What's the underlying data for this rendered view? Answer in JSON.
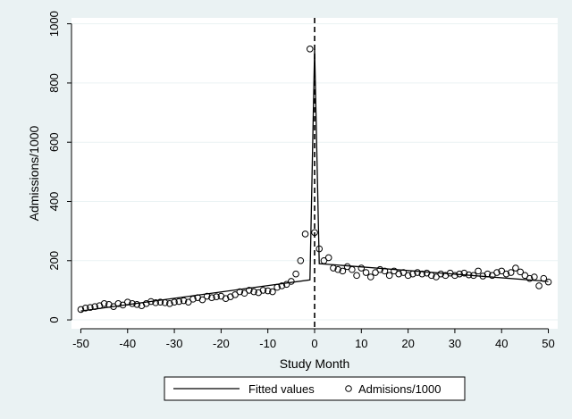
{
  "chart_data": {
    "type": "scatter",
    "title": "",
    "xlabel": "Study Month",
    "ylabel": "Admissions/1000",
    "xlim": [
      -52,
      52
    ],
    "ylim": [
      -30,
      1020
    ],
    "xticks": [
      -50,
      -40,
      -30,
      -20,
      -10,
      0,
      10,
      20,
      30,
      40,
      50
    ],
    "yticks": [
      0,
      200,
      400,
      600,
      800,
      1000
    ],
    "vertical_line": {
      "x": 0,
      "style": "dashed"
    },
    "legend": {
      "placement": "bottom",
      "entries": [
        "Fitted values",
        "Admisions/1000"
      ]
    },
    "series": [
      {
        "name": "Fitted values",
        "kind": "line",
        "x": [
          -50,
          -1,
          -1,
          0,
          0,
          1,
          1,
          50
        ],
        "y": [
          30,
          135,
          135,
          915,
          915,
          190,
          190,
          130
        ]
      },
      {
        "name": "Admisions/1000",
        "kind": "scatter",
        "x": [
          -50,
          -49,
          -48,
          -47,
          -46,
          -45,
          -44,
          -43,
          -42,
          -41,
          -40,
          -39,
          -38,
          -37,
          -36,
          -35,
          -34,
          -33,
          -32,
          -31,
          -30,
          -29,
          -28,
          -27,
          -26,
          -25,
          -24,
          -23,
          -22,
          -21,
          -20,
          -19,
          -18,
          -17,
          -16,
          -15,
          -14,
          -13,
          -12,
          -11,
          -10,
          -9,
          -8,
          -7,
          -6,
          -5,
          -4,
          -3,
          -2,
          -1,
          0,
          1,
          2,
          3,
          4,
          5,
          6,
          7,
          8,
          9,
          10,
          11,
          12,
          13,
          14,
          15,
          16,
          17,
          18,
          19,
          20,
          21,
          22,
          23,
          24,
          25,
          26,
          27,
          28,
          29,
          30,
          31,
          32,
          33,
          34,
          35,
          36,
          37,
          38,
          39,
          40,
          41,
          42,
          43,
          44,
          45,
          46,
          47,
          48,
          49,
          50
        ],
        "y": [
          35,
          40,
          42,
          45,
          48,
          55,
          52,
          45,
          55,
          50,
          60,
          55,
          52,
          48,
          55,
          62,
          58,
          60,
          58,
          55,
          60,
          62,
          65,
          60,
          70,
          75,
          68,
          80,
          75,
          78,
          80,
          72,
          78,
          85,
          95,
          90,
          100,
          95,
          92,
          100,
          98,
          95,
          110,
          115,
          120,
          130,
          155,
          200,
          290,
          915,
          295,
          240,
          200,
          210,
          175,
          170,
          165,
          180,
          170,
          150,
          175,
          160,
          145,
          160,
          170,
          165,
          150,
          165,
          155,
          160,
          150,
          155,
          160,
          155,
          158,
          150,
          145,
          155,
          150,
          158,
          150,
          155,
          158,
          152,
          150,
          165,
          148,
          155,
          150,
          160,
          165,
          155,
          160,
          175,
          162,
          150,
          140,
          145,
          115,
          140,
          128
        ]
      }
    ]
  }
}
